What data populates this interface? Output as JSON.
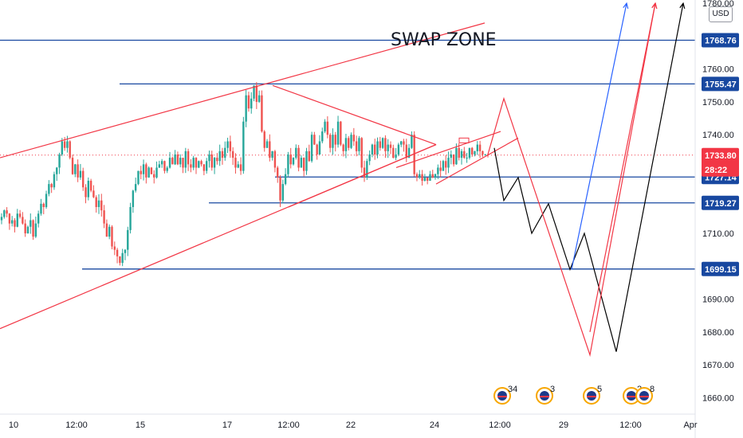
{
  "chart_data": {
    "type": "candlestick",
    "title": "SWAP ZONE",
    "currency": "USD",
    "y_range": [
      1655,
      1781
    ],
    "y_ticks": [
      "1660.00",
      "1670.00",
      "1680.00",
      "1690.00",
      "1700.00",
      "1710.00",
      "1720.00",
      "1730.00",
      "1740.00",
      "1750.00",
      "1760.00",
      "1780.00"
    ],
    "x_ticks": [
      "10",
      "12:00",
      "15",
      "17",
      "12:00",
      "22",
      "24",
      "12:00",
      "29",
      "12:00",
      "Apr"
    ],
    "levels": [
      {
        "label": "1768.76",
        "value": 1768.76
      },
      {
        "label": "1755.47",
        "value": 1755.47
      },
      {
        "label": "1727.14",
        "value": 1727.14
      },
      {
        "label": "1719.27",
        "value": 1719.27
      },
      {
        "label": "1699.15",
        "value": 1699.15
      }
    ],
    "last_price": {
      "label": "1733.80",
      "value": 1733.8,
      "countdown": "28:22",
      "color": "#f23645"
    },
    "series": [
      {
        "values": [
          1715,
          1717,
          1716,
          1713,
          1714,
          1712,
          1716,
          1715,
          1713,
          1710,
          1712,
          1714,
          1709,
          1713,
          1716,
          1719,
          1718,
          1722,
          1725,
          1724,
          1728,
          1730,
          1734,
          1738,
          1736,
          1738,
          1733,
          1728,
          1731,
          1727,
          1729,
          1724,
          1721,
          1726,
          1723,
          1721,
          1718,
          1720,
          1717,
          1713,
          1709,
          1712,
          1706,
          1705,
          1703,
          1701,
          1704,
          1705,
          1711,
          1718,
          1723,
          1725,
          1729,
          1728,
          1731,
          1727,
          1730,
          1728,
          1727,
          1730,
          1731,
          1732,
          1729,
          1730,
          1733,
          1731,
          1734,
          1731,
          1733,
          1730,
          1735,
          1731,
          1730,
          1733,
          1730,
          1732,
          1731,
          1729,
          1732,
          1734,
          1730,
          1733,
          1732,
          1735,
          1733,
          1736,
          1738,
          1735,
          1733,
          1730,
          1731,
          1729,
          1744,
          1752,
          1748,
          1751,
          1755,
          1750,
          1752,
          1741,
          1736,
          1738,
          1733,
          1735,
          1730,
          1727,
          1720,
          1725,
          1728,
          1734,
          1731,
          1733,
          1736,
          1730,
          1733,
          1729,
          1735,
          1732,
          1740,
          1737,
          1734,
          1738,
          1741,
          1744,
          1740,
          1736,
          1740,
          1737,
          1744,
          1737,
          1735,
          1739,
          1736,
          1740,
          1738,
          1735,
          1739,
          1730,
          1727,
          1732,
          1734,
          1737,
          1734,
          1738,
          1736,
          1739,
          1735,
          1737,
          1736,
          1733,
          1734,
          1737,
          1738,
          1737,
          1733,
          1736,
          1740,
          1728,
          1727,
          1728,
          1726,
          1727,
          1726,
          1728,
          1727,
          1728,
          1730,
          1729,
          1732,
          1730,
          1733,
          1734,
          1731,
          1736,
          1733,
          1735,
          1733,
          1733,
          1736,
          1734,
          1735,
          1737,
          1735,
          1734,
          1734,
          1733.8
        ],
        "color": "#26a69a",
        "down_color": "#ef5350"
      },
      {
        "name": "red wedge",
        "color": "#f23645"
      }
    ],
    "forecast_paths": [
      {
        "color": "#000000",
        "points": [
          [
            620,
            1736
          ],
          [
            632,
            1720
          ],
          [
            650,
            1727
          ],
          [
            667,
            1710
          ],
          [
            688,
            1719
          ],
          [
            715,
            1699
          ],
          [
            733,
            1710
          ],
          [
            773,
            1674
          ],
          [
            857,
            1780
          ]
        ]
      },
      {
        "color": "#f23645",
        "points": [
          [
            612,
            1734
          ],
          [
            632,
            1751
          ],
          [
            740,
            1673
          ],
          [
            822,
            1780
          ]
        ]
      },
      {
        "color": "#2962ff",
        "points": [
          [
            717,
            1699
          ],
          [
            786,
            1780
          ]
        ]
      },
      {
        "color": "#f23645",
        "points": [
          [
            740,
            1680
          ],
          [
            822,
            1780
          ]
        ]
      }
    ],
    "events": [
      {
        "label": "34",
        "color": "#f7a600"
      },
      {
        "label": "3",
        "color": "#f7a600"
      },
      {
        "label": "5",
        "color": "#f7a600"
      },
      {
        "label": "2",
        "color": "#f7a600"
      },
      {
        "label": "8",
        "color": "#f7a600"
      }
    ]
  }
}
